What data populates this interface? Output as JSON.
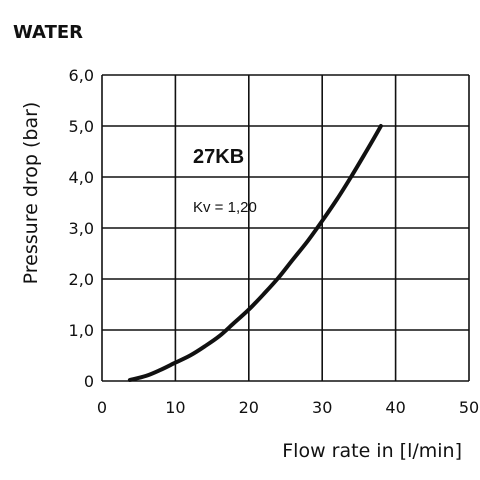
{
  "chart_data": {
    "type": "line",
    "title": "WATER",
    "xlabel": "Flow rate in [l/min]",
    "ylabel": "Pressure drop (bar)",
    "xlim": [
      0,
      50
    ],
    "ylim": [
      0,
      6
    ],
    "x_ticks": [
      "0",
      "10",
      "20",
      "30",
      "40",
      "50"
    ],
    "y_ticks": [
      "0",
      "1,0",
      "2,0",
      "3,0",
      "4,0",
      "5,0",
      "6,0"
    ],
    "grid": true,
    "series": [
      {
        "name": "27KB",
        "x": [
          3.8,
          6,
          8,
          10,
          12,
          14,
          16,
          18,
          20,
          22,
          24,
          26,
          28,
          30,
          32,
          34,
          36,
          38
        ],
        "y": [
          0.02,
          0.1,
          0.22,
          0.36,
          0.5,
          0.68,
          0.88,
          1.14,
          1.4,
          1.7,
          2.02,
          2.38,
          2.74,
          3.14,
          3.56,
          4.02,
          4.5,
          5.0
        ]
      }
    ],
    "annotations": [
      "Kv = 1,20"
    ]
  },
  "colors": {
    "line": "#111111",
    "grid": "#111111",
    "background": "#ffffff"
  }
}
